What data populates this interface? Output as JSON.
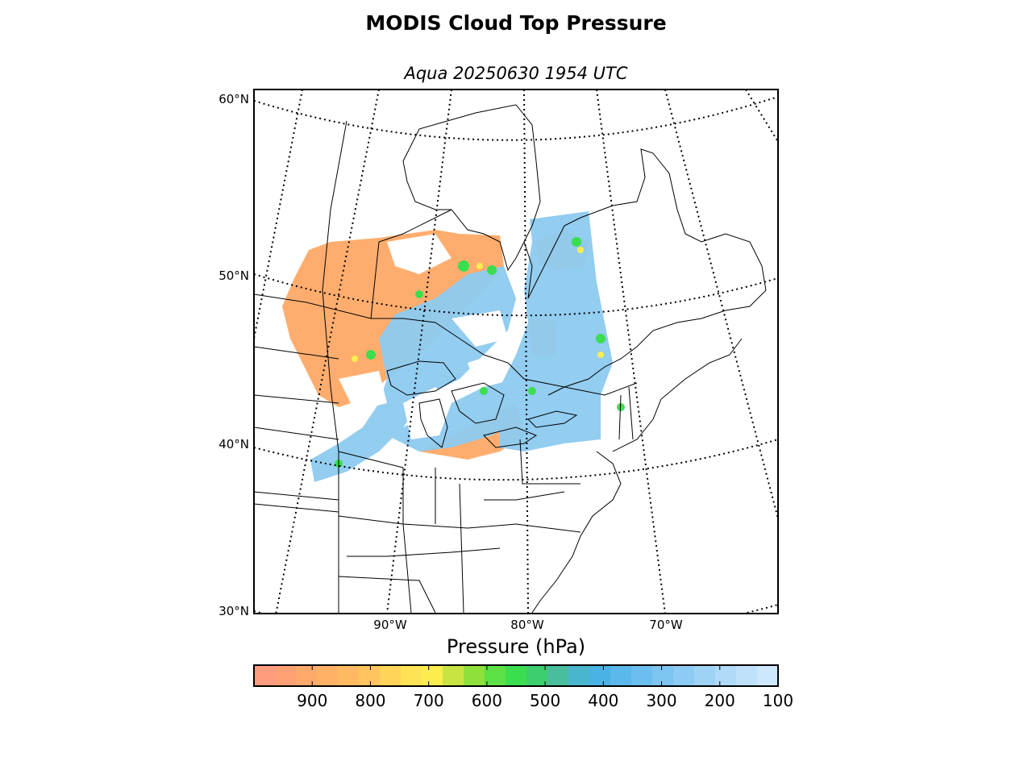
{
  "title": "MODIS Cloud Top Pressure",
  "subtitle": "Aqua 20250630 1954 UTC",
  "map": {
    "projection": "conic",
    "lat_labels": [
      "60°N",
      "50°N",
      "40°N",
      "30°N"
    ],
    "lon_labels": [
      "90°W",
      "80°W",
      "70°W"
    ],
    "graticule_style": "dotted",
    "coastline_color": "#000000"
  },
  "colorbar": {
    "title": "Pressure (hPa)",
    "ticks": [
      900,
      800,
      700,
      600,
      500,
      400,
      300,
      200,
      100
    ],
    "range": [
      1000,
      100
    ],
    "colors": [
      "#ff9b7e",
      "#ffa174",
      "#ffa96b",
      "#ffb166",
      "#ffba61",
      "#ffc45d",
      "#ffd459",
      "#ffe356",
      "#fbed4e",
      "#c8e443",
      "#8ee03b",
      "#5ee047",
      "#3bde4e",
      "#3dce6e",
      "#4abd9c",
      "#4ab6cd",
      "#4ab2e5",
      "#5ab8ea",
      "#6bbeee",
      "#7cc4f1",
      "#8ccbf3",
      "#9ed3f6",
      "#afdaf8",
      "#bfe1fa",
      "#cde8fc"
    ]
  },
  "legend_values": {
    "low_cloud_color": "#ffa966",
    "high_cloud_color": "#8ecbf0",
    "mid_cloud_color": "#3bde4e"
  }
}
